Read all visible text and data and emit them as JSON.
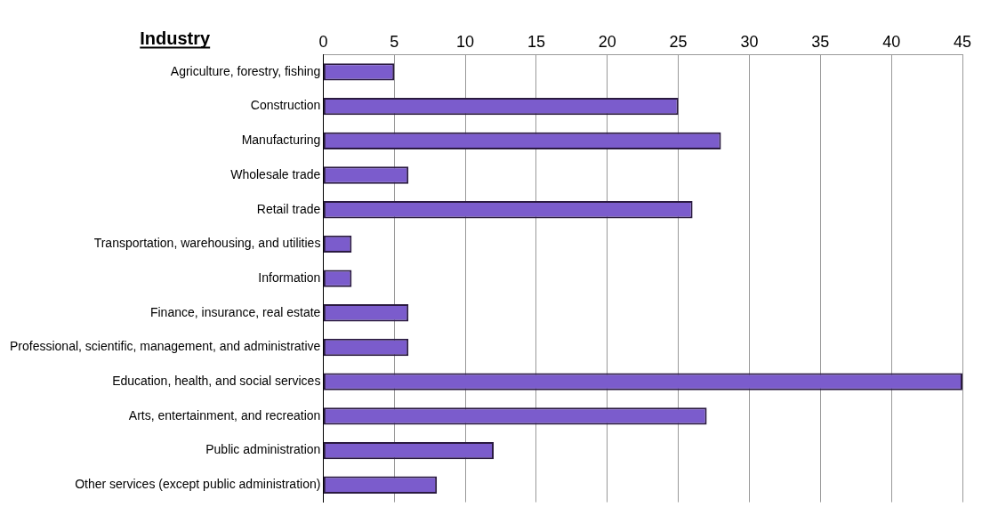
{
  "chart_data": {
    "type": "bar",
    "orientation": "horizontal",
    "ylabel": "Industry",
    "categories": [
      "Agriculture, forestry, fishing",
      "Construction",
      "Manufacturing",
      "Wholesale trade",
      "Retail trade",
      "Transportation, warehousing, and utilities",
      "Information",
      "Finance, insurance, real estate",
      "Professional, scientific, management, and administrative",
      "Education, health, and social services",
      "Arts, entertainment, and recreation",
      "Public administration",
      "Other services (except public administration)"
    ],
    "values": [
      5,
      25,
      28,
      6,
      26,
      2,
      2,
      6,
      6,
      45,
      27,
      12,
      8
    ],
    "color": "#7b5ccc",
    "xlim": [
      0,
      45
    ],
    "xticks": [
      0,
      5,
      10,
      15,
      20,
      25,
      30,
      35,
      40,
      45
    ],
    "grid": "x",
    "legend": false
  }
}
